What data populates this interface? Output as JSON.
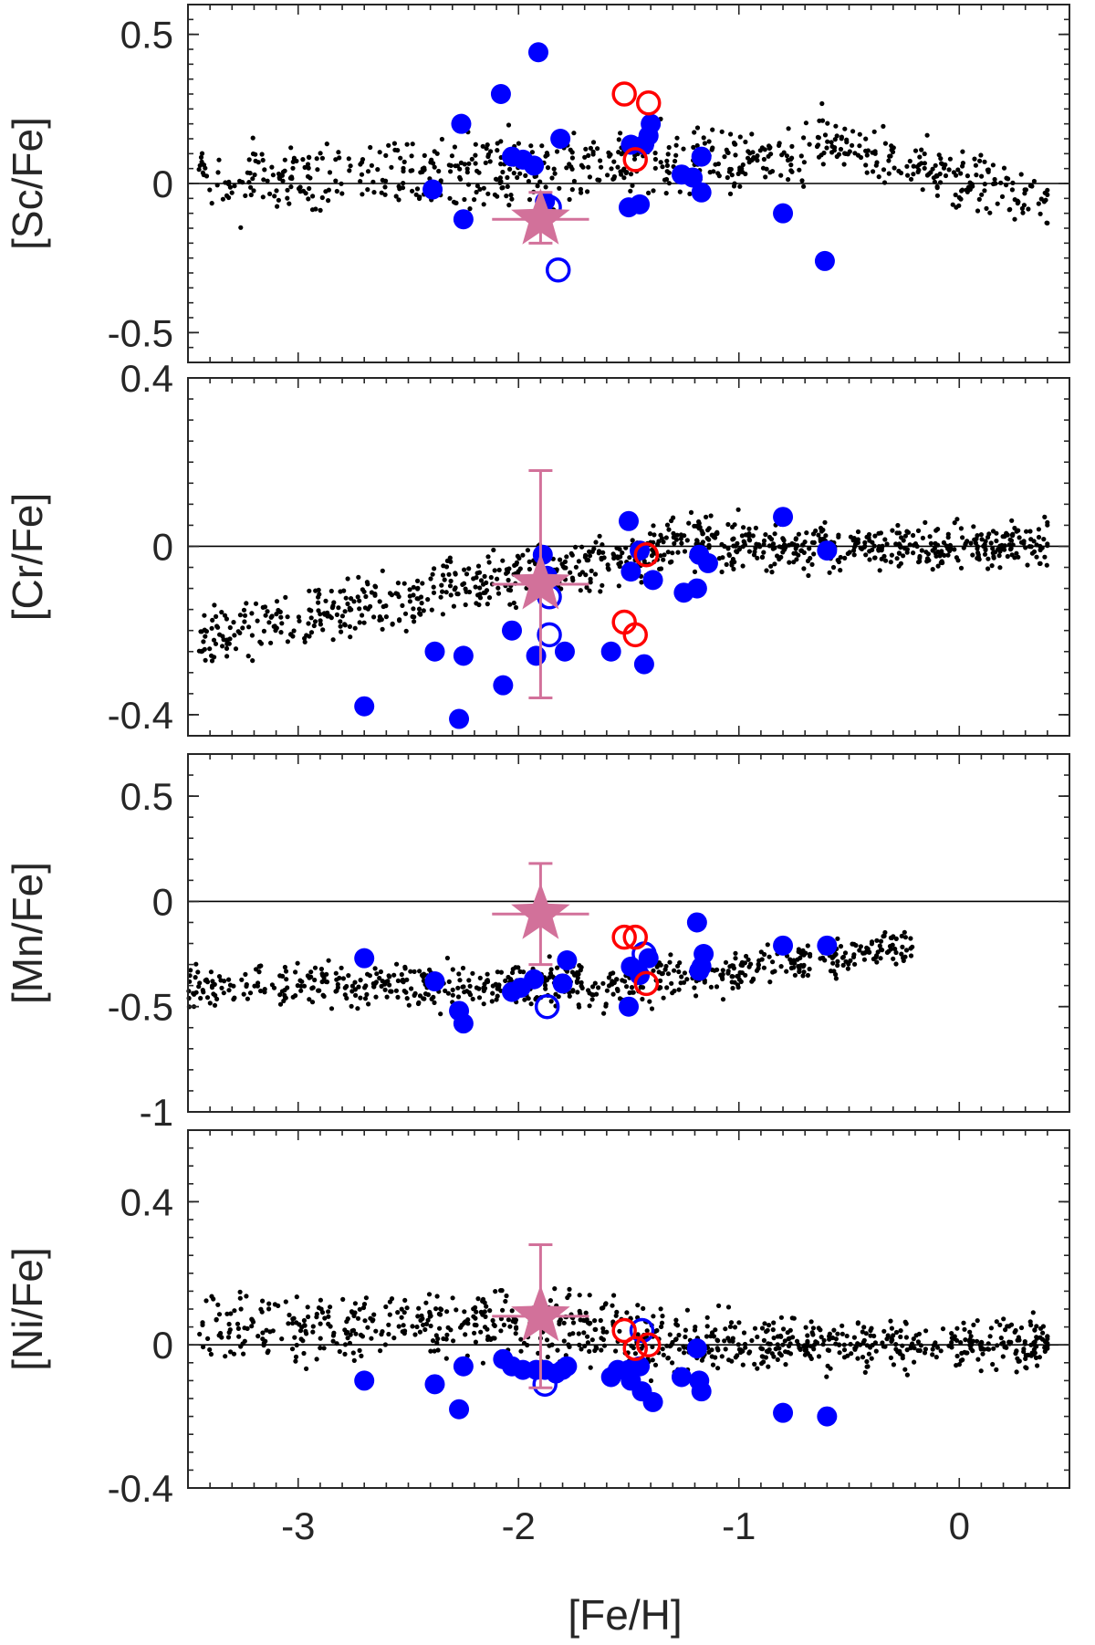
{
  "figure": {
    "xlabel": "[Fe/H]"
  },
  "colors": {
    "field": "#000000",
    "filled": "#0000ff",
    "open_blue": "#0000ff",
    "open_red": "#ff0000",
    "star": "#d2719a",
    "axis": "#262626"
  },
  "chart_data": [
    {
      "type": "scatter",
      "title": "",
      "xlabel": "[Fe/H]",
      "ylabel": "[Sc/Fe]",
      "xlim": [
        -3.5,
        0.5
      ],
      "ylim": [
        -0.6,
        0.6
      ],
      "yticks": [
        0.5,
        0,
        -0.5
      ],
      "ytick_labels": [
        "0.5",
        "0",
        "-0.5"
      ],
      "xticks": [
        -3,
        -2,
        -1,
        0
      ],
      "xtick_labels": [
        "-3",
        "-2",
        "-1",
        "0"
      ],
      "show_xticklabels": false,
      "reference_line": 0,
      "star": {
        "x": -1.9,
        "y": -0.12,
        "xerr": 0.22,
        "yerr_low": 0.08,
        "yerr_high": 0.09
      },
      "filled": [
        [
          -2.39,
          -0.02
        ],
        [
          -2.26,
          0.2
        ],
        [
          -2.25,
          -0.12
        ],
        [
          -2.08,
          0.3
        ],
        [
          -2.03,
          0.09
        ],
        [
          -1.98,
          0.08
        ],
        [
          -1.93,
          0.06
        ],
        [
          -1.91,
          0.44
        ],
        [
          -1.88,
          -0.06
        ],
        [
          -1.81,
          0.15
        ],
        [
          -1.5,
          -0.08
        ],
        [
          -1.49,
          0.13
        ],
        [
          -1.45,
          -0.07
        ],
        [
          -1.43,
          0.13
        ],
        [
          -1.41,
          0.16
        ],
        [
          -1.4,
          0.2
        ],
        [
          -1.26,
          0.03
        ],
        [
          -1.21,
          0.02
        ],
        [
          -1.17,
          0.09
        ],
        [
          -1.17,
          -0.03
        ],
        [
          -0.8,
          -0.1
        ],
        [
          -0.61,
          -0.26
        ]
      ],
      "open_blue": [
        [
          -1.86,
          -0.08
        ],
        [
          -1.82,
          -0.29
        ]
      ],
      "open_red": [
        [
          -1.52,
          0.3
        ],
        [
          -1.47,
          0.08
        ],
        [
          -1.41,
          0.27
        ]
      ]
    },
    {
      "type": "scatter",
      "title": "",
      "xlabel": "[Fe/H]",
      "ylabel": "[Cr/Fe]",
      "xlim": [
        -3.5,
        0.5
      ],
      "ylim": [
        -0.45,
        0.4
      ],
      "yticks": [
        0.4,
        0,
        -0.4
      ],
      "ytick_labels": [
        "0.4",
        "0",
        "-0.4"
      ],
      "xticks": [
        -3,
        -2,
        -1,
        0
      ],
      "xtick_labels": [
        "-3",
        "-2",
        "-1",
        "0"
      ],
      "show_xticklabels": false,
      "reference_line": 0,
      "star": {
        "x": -1.9,
        "y": -0.09,
        "xerr": 0.22,
        "yerr_low": 0.27,
        "yerr_high": 0.27
      },
      "filled": [
        [
          -2.7,
          -0.38
        ],
        [
          -2.38,
          -0.25
        ],
        [
          -2.27,
          -0.41
        ],
        [
          -2.25,
          -0.26
        ],
        [
          -2.07,
          -0.33
        ],
        [
          -2.03,
          -0.2
        ],
        [
          -1.92,
          -0.26
        ],
        [
          -1.89,
          -0.02
        ],
        [
          -1.87,
          -0.07
        ],
        [
          -1.79,
          -0.25
        ],
        [
          -1.58,
          -0.25
        ],
        [
          -1.5,
          0.06
        ],
        [
          -1.49,
          -0.06
        ],
        [
          -1.45,
          -0.01
        ],
        [
          -1.43,
          -0.28
        ],
        [
          -1.39,
          -0.08
        ],
        [
          -1.25,
          -0.11
        ],
        [
          -1.19,
          -0.1
        ],
        [
          -1.18,
          -0.02
        ],
        [
          -1.14,
          -0.04
        ],
        [
          -0.8,
          0.07
        ],
        [
          -0.6,
          -0.01
        ]
      ],
      "open_blue": [
        [
          -1.86,
          -0.12
        ],
        [
          -1.86,
          -0.21
        ]
      ],
      "open_red": [
        [
          -1.52,
          -0.18
        ],
        [
          -1.47,
          -0.21
        ],
        [
          -1.42,
          -0.02
        ]
      ]
    },
    {
      "type": "scatter",
      "title": "",
      "xlabel": "[Fe/H]",
      "ylabel": "[Mn/Fe]",
      "xlim": [
        -3.5,
        0.5
      ],
      "ylim": [
        -1,
        0.7
      ],
      "yticks": [
        0.5,
        0,
        -0.5,
        -1
      ],
      "ytick_labels": [
        "0.5",
        "0",
        "-0.5",
        "-1"
      ],
      "xticks": [
        -3,
        -2,
        -1,
        0
      ],
      "xtick_labels": [
        "-3",
        "-2",
        "-1",
        "0"
      ],
      "show_xticklabels": false,
      "reference_line": 0,
      "star": {
        "x": -1.9,
        "y": -0.06,
        "xerr": 0.22,
        "yerr_low": 0.24,
        "yerr_high": 0.24
      },
      "filled": [
        [
          -2.7,
          -0.27
        ],
        [
          -2.38,
          -0.38
        ],
        [
          -2.27,
          -0.52
        ],
        [
          -2.25,
          -0.58
        ],
        [
          -2.03,
          -0.43
        ],
        [
          -1.99,
          -0.41
        ],
        [
          -1.93,
          -0.37
        ],
        [
          -1.8,
          -0.39
        ],
        [
          -1.78,
          -0.28
        ],
        [
          -1.5,
          -0.5
        ],
        [
          -1.49,
          -0.31
        ],
        [
          -1.45,
          -0.35
        ],
        [
          -1.41,
          -0.27
        ],
        [
          -1.19,
          -0.1
        ],
        [
          -1.18,
          -0.33
        ],
        [
          -1.17,
          -0.31
        ],
        [
          -1.16,
          -0.25
        ],
        [
          -0.8,
          -0.21
        ],
        [
          -0.6,
          -0.21
        ]
      ],
      "open_blue": [
        [
          -1.87,
          -0.5
        ],
        [
          -1.43,
          -0.25
        ]
      ],
      "open_red": [
        [
          -1.52,
          -0.17
        ],
        [
          -1.47,
          -0.17
        ],
        [
          -1.42,
          -0.39
        ]
      ]
    },
    {
      "type": "scatter",
      "title": "",
      "xlabel": "[Fe/H]",
      "ylabel": "[Ni/Fe]",
      "xlim": [
        -3.5,
        0.5
      ],
      "ylim": [
        -0.4,
        0.6
      ],
      "yticks": [
        0.4,
        0,
        -0.4
      ],
      "ytick_labels": [
        "0.4",
        "0",
        "-0.4"
      ],
      "xticks": [
        -3,
        -2,
        -1,
        0
      ],
      "xtick_labels": [
        "-3",
        "-2",
        "-1",
        "0"
      ],
      "show_xticklabels": true,
      "reference_line": 0,
      "star": {
        "x": -1.9,
        "y": 0.08,
        "xerr": 0.22,
        "yerr_low": 0.2,
        "yerr_high": 0.2
      },
      "filled": [
        [
          -2.7,
          -0.1
        ],
        [
          -2.38,
          -0.11
        ],
        [
          -2.27,
          -0.18
        ],
        [
          -2.25,
          -0.06
        ],
        [
          -2.07,
          -0.04
        ],
        [
          -2.03,
          -0.06
        ],
        [
          -1.98,
          -0.07
        ],
        [
          -1.92,
          -0.07
        ],
        [
          -1.88,
          -0.07
        ],
        [
          -1.83,
          -0.08
        ],
        [
          -1.8,
          -0.07
        ],
        [
          -1.78,
          -0.06
        ],
        [
          -1.58,
          -0.09
        ],
        [
          -1.55,
          -0.07
        ],
        [
          -1.5,
          -0.07
        ],
        [
          -1.49,
          -0.1
        ],
        [
          -1.45,
          -0.06
        ],
        [
          -1.44,
          -0.13
        ],
        [
          -1.39,
          -0.16
        ],
        [
          -1.26,
          -0.09
        ],
        [
          -1.19,
          -0.01
        ],
        [
          -1.18,
          -0.1
        ],
        [
          -1.17,
          -0.13
        ],
        [
          -0.8,
          -0.19
        ],
        [
          -0.6,
          -0.2
        ]
      ],
      "open_blue": [
        [
          -1.88,
          -0.11
        ],
        [
          -1.44,
          0.04
        ]
      ],
      "open_red": [
        [
          -1.52,
          0.04
        ],
        [
          -1.47,
          -0.01
        ],
        [
          -1.41,
          0.0
        ]
      ]
    }
  ]
}
